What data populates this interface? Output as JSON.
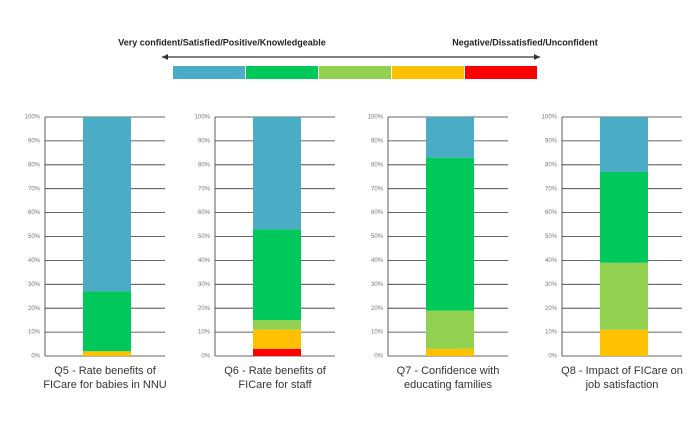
{
  "scale": {
    "left_label": "Very confident/Satisfied/Positive/Knowledgeable",
    "right_label": "Negative/Dissatisfied/Unconfident"
  },
  "chart_data": [
    {
      "type": "bar",
      "stacked": true,
      "categories": [
        "Q5 - Rate benefits of FICare for babies in NNU"
      ],
      "series": [
        {
          "color": "#ff0000",
          "values": [
            0
          ]
        },
        {
          "color": "#ffc000",
          "values": [
            2
          ]
        },
        {
          "color": "#92d050",
          "values": [
            0
          ]
        },
        {
          "color": "#00c85a",
          "values": [
            25
          ]
        },
        {
          "color": "#4bacc6",
          "values": [
            73
          ]
        }
      ],
      "ylim": [
        0,
        100
      ],
      "yticks": [
        {
          "value": 0,
          "label": "0%"
        },
        {
          "value": 10,
          "label": "10%"
        },
        {
          "value": 20,
          "label": "20%"
        },
        {
          "value": 30,
          "label": "30%"
        },
        {
          "value": 40,
          "label": "40%"
        },
        {
          "value": 50,
          "label": "50%"
        },
        {
          "value": 60,
          "label": "60%"
        },
        {
          "value": 70,
          "label": "70%"
        },
        {
          "value": 80,
          "label": "80%"
        },
        {
          "value": 90,
          "label": "90%"
        },
        {
          "value": 100,
          "label": "100%"
        }
      ],
      "grid": true
    },
    {
      "type": "bar",
      "stacked": true,
      "categories": [
        "Q6 - Rate benefits of FICare for staff"
      ],
      "series": [
        {
          "color": "#ff0000",
          "values": [
            3
          ]
        },
        {
          "color": "#ffc000",
          "values": [
            8
          ]
        },
        {
          "color": "#92d050",
          "values": [
            4
          ]
        },
        {
          "color": "#00c85a",
          "values": [
            38
          ]
        },
        {
          "color": "#4bacc6",
          "values": [
            47
          ]
        }
      ],
      "ylim": [
        0,
        100
      ],
      "yticks": [
        {
          "value": 0,
          "label": "0%"
        },
        {
          "value": 10,
          "label": "10%"
        },
        {
          "value": 20,
          "label": "20%"
        },
        {
          "value": 30,
          "label": "30%"
        },
        {
          "value": 40,
          "label": "40%"
        },
        {
          "value": 50,
          "label": "50%"
        },
        {
          "value": 60,
          "label": "60%"
        },
        {
          "value": 70,
          "label": "70%"
        },
        {
          "value": 80,
          "label": "80%"
        },
        {
          "value": 90,
          "label": "90%"
        },
        {
          "value": 100,
          "label": "100%"
        }
      ],
      "grid": true
    },
    {
      "type": "bar",
      "stacked": true,
      "categories": [
        "Q7 - Confidence with educating families"
      ],
      "series": [
        {
          "color": "#ff0000",
          "values": [
            0
          ]
        },
        {
          "color": "#ffc000",
          "values": [
            3
          ]
        },
        {
          "color": "#92d050",
          "values": [
            16
          ]
        },
        {
          "color": "#00c85a",
          "values": [
            64
          ]
        },
        {
          "color": "#4bacc6",
          "values": [
            17
          ]
        }
      ],
      "ylim": [
        0,
        100
      ],
      "yticks": [
        {
          "value": 0,
          "label": "0%"
        },
        {
          "value": 10,
          "label": "10%"
        },
        {
          "value": 20,
          "label": "20%"
        },
        {
          "value": 30,
          "label": "30%"
        },
        {
          "value": 40,
          "label": "40%"
        },
        {
          "value": 50,
          "label": "50%"
        },
        {
          "value": 60,
          "label": "60%"
        },
        {
          "value": 70,
          "label": "70%"
        },
        {
          "value": 80,
          "label": "80%"
        },
        {
          "value": 90,
          "label": "90%"
        },
        {
          "value": 100,
          "label": "100%"
        }
      ],
      "grid": true
    },
    {
      "type": "bar",
      "stacked": true,
      "categories": [
        "Q8 - Impact of FICare on job satisfaction"
      ],
      "series": [
        {
          "color": "#ff0000",
          "values": [
            0
          ]
        },
        {
          "color": "#ffc000",
          "values": [
            11
          ]
        },
        {
          "color": "#92d050",
          "values": [
            28
          ]
        },
        {
          "color": "#00c85a",
          "values": [
            38
          ]
        },
        {
          "color": "#4bacc6",
          "values": [
            23
          ]
        }
      ],
      "ylim": [
        0,
        100
      ],
      "yticks": [
        {
          "value": 0,
          "label": "0%"
        },
        {
          "value": 10,
          "label": "10%"
        },
        {
          "value": 20,
          "label": "20%"
        },
        {
          "value": 30,
          "label": "30%"
        },
        {
          "value": 40,
          "label": "40%"
        },
        {
          "value": 50,
          "label": "50%"
        },
        {
          "value": 60,
          "label": "60%"
        },
        {
          "value": 70,
          "label": "70%"
        },
        {
          "value": 80,
          "label": "80%"
        },
        {
          "value": 90,
          "label": "90%"
        },
        {
          "value": 100,
          "label": "100%"
        }
      ],
      "grid": true
    }
  ]
}
